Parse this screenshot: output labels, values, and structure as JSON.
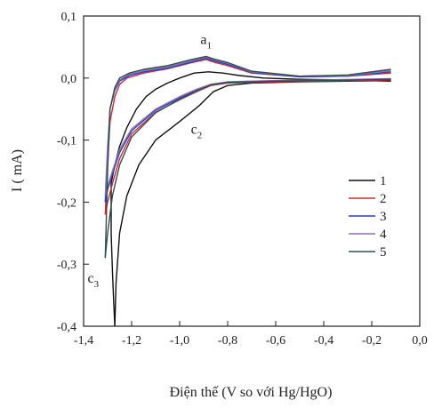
{
  "chart_data": {
    "type": "line",
    "title": "",
    "xlabel": "Điện thế (V so với Hg/HgO)",
    "ylabel": "I ( mA)",
    "xlim": [
      -1.4,
      0.0
    ],
    "ylim": [
      -0.4,
      0.1
    ],
    "x_ticks": [
      {
        "value": -1.4,
        "label": "-1,4"
      },
      {
        "value": -1.2,
        "label": "-1,2"
      },
      {
        "value": -1.0,
        "label": "-1,0"
      },
      {
        "value": -0.8,
        "label": "-0,8"
      },
      {
        "value": -0.6,
        "label": "-0,6"
      },
      {
        "value": -0.4,
        "label": "-0,4"
      },
      {
        "value": -0.2,
        "label": "-0,2"
      },
      {
        "value": 0.0,
        "label": "0,0"
      }
    ],
    "y_ticks": [
      {
        "value": 0.1,
        "label": "0,1"
      },
      {
        "value": 0.0,
        "label": "0,0"
      },
      {
        "value": -0.1,
        "label": "-0,1"
      },
      {
        "value": -0.2,
        "label": "-0,2"
      },
      {
        "value": -0.3,
        "label": "-0,3"
      },
      {
        "value": -0.4,
        "label": "-0,4"
      }
    ],
    "grid": false,
    "legend_position": "right",
    "annotations": [
      {
        "label": "a",
        "sub": "1",
        "x": -0.89,
        "y": 0.055
      },
      {
        "label": "c",
        "sub": "2",
        "x": -0.93,
        "y": -0.09
      },
      {
        "label": "c",
        "sub": "3",
        "x": -1.36,
        "y": -0.33
      }
    ],
    "series": [
      {
        "name": "1",
        "color": "#111111",
        "reverse": [
          [
            -0.12,
            -0.005
          ],
          [
            -0.3,
            -0.003
          ],
          [
            -0.5,
            -0.002
          ],
          [
            -0.65,
            0.0
          ],
          [
            -0.75,
            0.004
          ],
          [
            -0.82,
            0.008
          ],
          [
            -0.88,
            0.01
          ],
          [
            -0.94,
            0.008
          ],
          [
            -1.0,
            0.0
          ],
          [
            -1.05,
            -0.008
          ],
          [
            -1.1,
            -0.018
          ],
          [
            -1.14,
            -0.03
          ],
          [
            -1.18,
            -0.05
          ],
          [
            -1.22,
            -0.08
          ],
          [
            -1.25,
            -0.11
          ],
          [
            -1.27,
            -0.14
          ],
          [
            -1.285,
            -0.17
          ]
        ],
        "forward": [
          [
            -1.285,
            -0.17
          ],
          [
            -1.285,
            -0.25
          ],
          [
            -1.28,
            -0.31
          ],
          [
            -1.275,
            -0.36
          ],
          [
            -1.27,
            -0.4
          ]
        ],
        "cathodic": [
          [
            -1.27,
            -0.4
          ],
          [
            -1.265,
            -0.33
          ],
          [
            -1.25,
            -0.25
          ],
          [
            -1.22,
            -0.19
          ],
          [
            -1.17,
            -0.14
          ],
          [
            -1.1,
            -0.1
          ],
          [
            -1.0,
            -0.07
          ],
          [
            -0.92,
            -0.045
          ],
          [
            -0.86,
            -0.022
          ],
          [
            -0.8,
            -0.012
          ],
          [
            -0.7,
            -0.008
          ],
          [
            -0.5,
            -0.006
          ],
          [
            -0.3,
            -0.005
          ],
          [
            -0.12,
            -0.004
          ]
        ]
      },
      {
        "name": "2",
        "color": "#d42a2a",
        "reverse": [
          [
            -0.12,
            0.008
          ],
          [
            -0.3,
            0.003
          ],
          [
            -0.5,
            0.002
          ],
          [
            -0.7,
            0.008
          ],
          [
            -0.8,
            0.02
          ],
          [
            -0.85,
            0.025
          ],
          [
            -0.89,
            0.03
          ],
          [
            -0.95,
            0.025
          ],
          [
            -1.05,
            0.015
          ],
          [
            -1.15,
            0.008
          ],
          [
            -1.22,
            0.0
          ],
          [
            -1.25,
            -0.01
          ],
          [
            -1.27,
            -0.03
          ],
          [
            -1.29,
            -0.07
          ],
          [
            -1.3,
            -0.14
          ],
          [
            -1.31,
            -0.22
          ]
        ],
        "forward": [
          [
            -1.31,
            -0.22
          ],
          [
            -1.3,
            -0.2
          ],
          [
            -1.28,
            -0.17
          ],
          [
            -1.25,
            -0.13
          ],
          [
            -1.2,
            -0.09
          ],
          [
            -1.1,
            -0.055
          ],
          [
            -1.0,
            -0.035
          ],
          [
            -0.93,
            -0.022
          ],
          [
            -0.87,
            -0.012
          ],
          [
            -0.8,
            -0.008
          ],
          [
            -0.6,
            -0.006
          ],
          [
            -0.4,
            -0.005
          ],
          [
            -0.12,
            -0.003
          ]
        ]
      },
      {
        "name": "3",
        "color": "#2a3fc4",
        "reverse": [
          [
            -0.12,
            0.01
          ],
          [
            -0.3,
            0.003
          ],
          [
            -0.5,
            0.002
          ],
          [
            -0.7,
            0.009
          ],
          [
            -0.8,
            0.022
          ],
          [
            -0.86,
            0.028
          ],
          [
            -0.89,
            0.032
          ],
          [
            -0.95,
            0.026
          ],
          [
            -1.05,
            0.016
          ],
          [
            -1.15,
            0.01
          ],
          [
            -1.21,
            0.004
          ],
          [
            -1.25,
            -0.005
          ],
          [
            -1.27,
            -0.02
          ],
          [
            -1.29,
            -0.05
          ],
          [
            -1.3,
            -0.12
          ],
          [
            -1.31,
            -0.2
          ]
        ],
        "forward": [
          [
            -1.31,
            -0.2
          ],
          [
            -1.3,
            -0.18
          ],
          [
            -1.28,
            -0.155
          ],
          [
            -1.25,
            -0.12
          ],
          [
            -1.2,
            -0.085
          ],
          [
            -1.1,
            -0.052
          ],
          [
            -1.0,
            -0.032
          ],
          [
            -0.93,
            -0.02
          ],
          [
            -0.87,
            -0.011
          ],
          [
            -0.8,
            -0.007
          ],
          [
            -0.6,
            -0.005
          ],
          [
            -0.4,
            -0.004
          ],
          [
            -0.12,
            -0.002
          ]
        ]
      },
      {
        "name": "4",
        "color": "#8a6fb5",
        "reverse": [
          [
            -0.12,
            0.012
          ],
          [
            -0.3,
            0.004
          ],
          [
            -0.5,
            0.003
          ],
          [
            -0.7,
            0.01
          ],
          [
            -0.8,
            0.024
          ],
          [
            -0.86,
            0.03
          ],
          [
            -0.89,
            0.034
          ],
          [
            -0.95,
            0.028
          ],
          [
            -1.05,
            0.018
          ],
          [
            -1.15,
            0.012
          ],
          [
            -1.21,
            0.006
          ],
          [
            -1.25,
            -0.003
          ],
          [
            -1.27,
            -0.018
          ],
          [
            -1.29,
            -0.05
          ],
          [
            -1.3,
            -0.11
          ],
          [
            -1.31,
            -0.19
          ]
        ],
        "forward": [
          [
            -1.31,
            -0.19
          ],
          [
            -1.3,
            -0.175
          ],
          [
            -1.28,
            -0.15
          ],
          [
            -1.25,
            -0.115
          ],
          [
            -1.2,
            -0.082
          ],
          [
            -1.1,
            -0.05
          ],
          [
            -1.0,
            -0.03
          ],
          [
            -0.93,
            -0.018
          ],
          [
            -0.87,
            -0.01
          ],
          [
            -0.8,
            -0.006
          ],
          [
            -0.6,
            -0.004
          ],
          [
            -0.4,
            -0.003
          ],
          [
            -0.12,
            -0.001
          ]
        ]
      },
      {
        "name": "5",
        "color": "#2f4f4f",
        "reverse": [
          [
            -0.12,
            0.014
          ],
          [
            -0.3,
            0.005
          ],
          [
            -0.5,
            0.003
          ],
          [
            -0.7,
            0.011
          ],
          [
            -0.8,
            0.025
          ],
          [
            -0.86,
            0.031
          ],
          [
            -0.89,
            0.035
          ],
          [
            -0.95,
            0.03
          ],
          [
            -1.05,
            0.02
          ],
          [
            -1.15,
            0.014
          ],
          [
            -1.21,
            0.008
          ],
          [
            -1.25,
            0.0
          ],
          [
            -1.27,
            -0.015
          ],
          [
            -1.29,
            -0.05
          ],
          [
            -1.3,
            -0.15
          ],
          [
            -1.31,
            -0.29
          ]
        ],
        "forward": [
          [
            -1.31,
            -0.29
          ],
          [
            -1.3,
            -0.25
          ],
          [
            -1.28,
            -0.19
          ],
          [
            -1.25,
            -0.14
          ],
          [
            -1.2,
            -0.095
          ],
          [
            -1.1,
            -0.056
          ],
          [
            -1.0,
            -0.034
          ],
          [
            -0.93,
            -0.021
          ],
          [
            -0.87,
            -0.011
          ],
          [
            -0.8,
            -0.007
          ],
          [
            -0.6,
            -0.005
          ],
          [
            -0.4,
            -0.004
          ],
          [
            -0.12,
            -0.002
          ]
        ]
      }
    ]
  }
}
